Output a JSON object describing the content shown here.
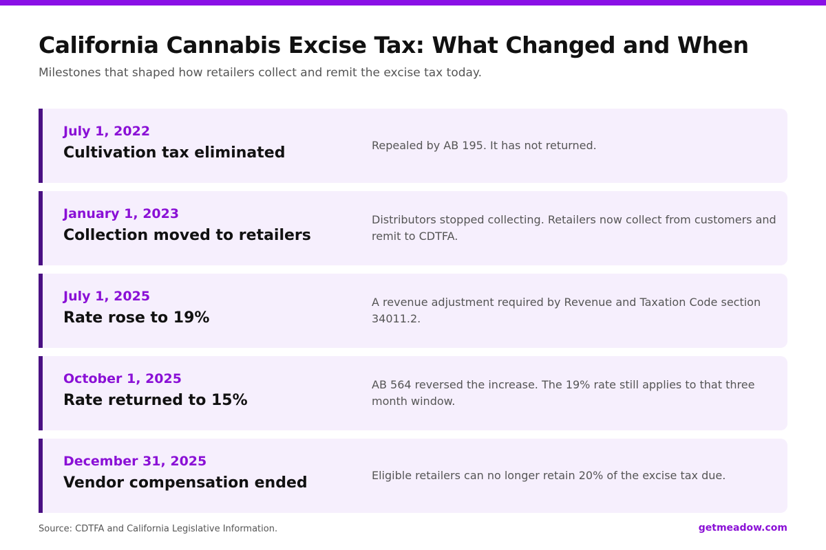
{
  "header": {
    "title": "California Cannabis Excise Tax: What Changed and When",
    "subtitle": "Milestones that shaped how retailers collect and remit the excise tax today."
  },
  "milestones": [
    {
      "date": "July 1, 2022",
      "title": "Cultivation tax eliminated",
      "description": "Repealed by AB 195. It has not returned."
    },
    {
      "date": "January 1, 2023",
      "title": "Collection moved to retailers",
      "description": "Distributors stopped collecting. Retailers now collect from customers and remit to CDTFA."
    },
    {
      "date": "July 1, 2025",
      "title": "Rate rose to 19%",
      "description": "A revenue adjustment required by Revenue and Taxation Code section 34011.2."
    },
    {
      "date": "October 1, 2025",
      "title": "Rate returned to 15%",
      "description": "AB 564 reversed the increase. The 19% rate still applies to that three month window."
    },
    {
      "date": "December 31, 2025",
      "title": "Vendor compensation ended",
      "description": "Eligible retailers can no longer retain 20% of the excise tax due."
    }
  ],
  "footer": {
    "source": "Source: CDTFA and California Legislative Information.",
    "brand": "getmeadow.com"
  }
}
